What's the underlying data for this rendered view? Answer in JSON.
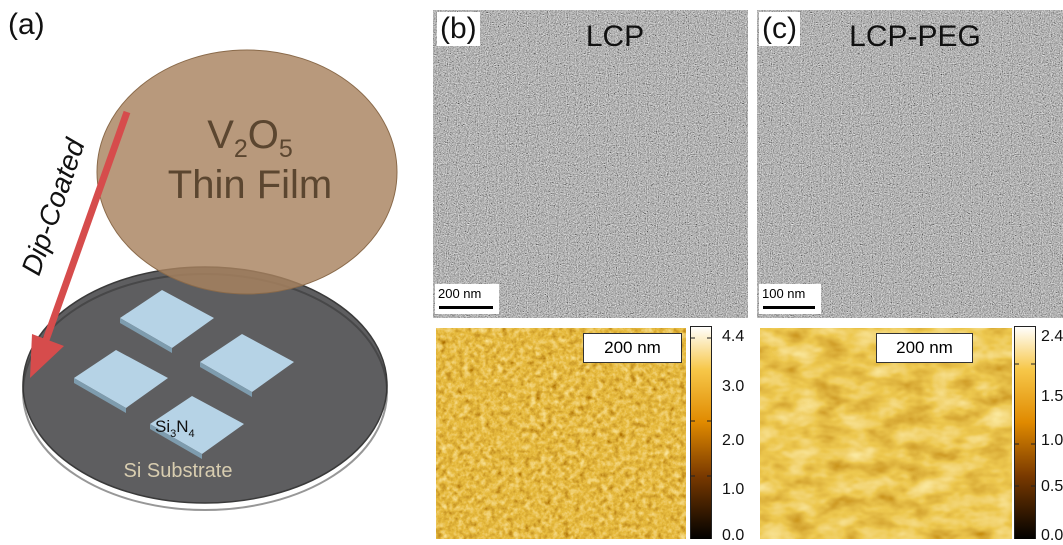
{
  "panel_a": {
    "letter": "(a)",
    "film_line1_base": "V",
    "film_line1_sub1": "2",
    "film_line1_mid": "O",
    "film_line1_sub2": "5",
    "film_line2": "Thin Film",
    "arrow_label": "Dip-Coated",
    "pad_label_base": "Si",
    "pad_label_sub1": "3",
    "pad_label_mid": "N",
    "pad_label_sub2": "4",
    "substrate_label": "Si Substrate",
    "colors": {
      "film": "#a8835f",
      "substrate": "#5e5e60",
      "pad": "#b6d3e6",
      "arrow": "#d64c4c"
    }
  },
  "panel_b": {
    "letter": "(b)",
    "title": "LCP",
    "scale_bar": "200 nm",
    "afm_scale": "200 nm",
    "colorbar_ticks": [
      "4.4",
      "3.0",
      "2.0",
      "1.0",
      "0.0"
    ]
  },
  "panel_c": {
    "letter": "(c)",
    "title": "LCP-PEG",
    "scale_bar": "100 nm",
    "afm_scale": "200 nm",
    "colorbar_ticks": [
      "2.4",
      "1.5",
      "1.0",
      "0.5",
      "0.0"
    ]
  }
}
